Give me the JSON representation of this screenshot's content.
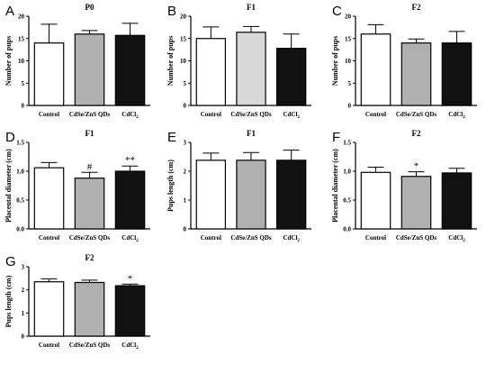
{
  "chart_data": [
    {
      "panel": "A",
      "type": "bar",
      "title": "P0",
      "ylabel": "Number of pups",
      "categories": [
        "Control",
        "CdSe/ZnS QDs",
        "CdCl2"
      ],
      "values": [
        14,
        16,
        15.7
      ],
      "errors": [
        4.2,
        0.8,
        2.7
      ],
      "colors": [
        "#ffffff",
        "#b0b0b0",
        "#111111"
      ],
      "ylim": [
        0,
        20
      ],
      "yticks": [
        "0",
        "5",
        "10",
        "15",
        "20"
      ],
      "annotations": [
        "",
        "",
        ""
      ]
    },
    {
      "panel": "B",
      "type": "bar",
      "title": "F1",
      "ylabel": "Number of pups",
      "categories": [
        "Control",
        "CdSe/ZnS QDs",
        "CdCl2"
      ],
      "values": [
        15,
        16.4,
        12.8
      ],
      "errors": [
        2.6,
        1.3,
        3.2
      ],
      "colors": [
        "#ffffff",
        "#d8d8d8",
        "#111111"
      ],
      "ylim": [
        0,
        20
      ],
      "yticks": [
        "0",
        "5",
        "10",
        "15",
        "20"
      ],
      "annotations": [
        "",
        "",
        ""
      ]
    },
    {
      "panel": "C",
      "type": "bar",
      "title": "F2",
      "ylabel": "Number of pups",
      "categories": [
        "Control",
        "CdSe/ZnS QDs",
        "CdCl2"
      ],
      "values": [
        16,
        14,
        14
      ],
      "errors": [
        2.1,
        0.9,
        2.6
      ],
      "colors": [
        "#ffffff",
        "#b0b0b0",
        "#111111"
      ],
      "ylim": [
        0,
        20
      ],
      "yticks": [
        "0",
        "5",
        "10",
        "15",
        "20"
      ],
      "annotations": [
        "",
        "",
        ""
      ]
    },
    {
      "panel": "D",
      "type": "bar",
      "title": "F1",
      "ylabel": "Placental diameter (cm)",
      "categories": [
        "Control",
        "CdSe/ZnS QDs",
        "CdCl2"
      ],
      "values": [
        1.06,
        0.88,
        1.0
      ],
      "errors": [
        0.09,
        0.1,
        0.09
      ],
      "colors": [
        "#ffffff",
        "#b0b0b0",
        "#111111"
      ],
      "ylim": [
        0,
        1.5
      ],
      "yticks": [
        "0.0",
        "0.5",
        "1.0",
        "1.5"
      ],
      "annotations": [
        "",
        "#",
        "**"
      ]
    },
    {
      "panel": "E",
      "type": "bar",
      "title": "F1",
      "ylabel": "Pups length (cm)",
      "categories": [
        "Control",
        "CdSe/ZnS QDs",
        "CdCl2"
      ],
      "values": [
        2.38,
        2.38,
        2.38
      ],
      "errors": [
        0.25,
        0.27,
        0.35
      ],
      "colors": [
        "#ffffff",
        "#b0b0b0",
        "#111111"
      ],
      "ylim": [
        0,
        3
      ],
      "yticks": [
        "0",
        "1",
        "2",
        "3"
      ],
      "annotations": [
        "",
        "",
        ""
      ]
    },
    {
      "panel": "F",
      "type": "bar",
      "title": "F2",
      "ylabel": "Placental diameter (cm)",
      "categories": [
        "Control",
        "CdSe/ZnS QDs",
        "CdCl2"
      ],
      "values": [
        0.98,
        0.91,
        0.97
      ],
      "errors": [
        0.09,
        0.08,
        0.08
      ],
      "colors": [
        "#ffffff",
        "#b0b0b0",
        "#111111"
      ],
      "ylim": [
        0,
        1.5
      ],
      "yticks": [
        "0.0",
        "0.5",
        "1.0",
        "1.5"
      ],
      "annotations": [
        "",
        "*",
        ""
      ]
    },
    {
      "panel": "G",
      "type": "bar",
      "title": "F2",
      "ylabel": "Pups length (cm)",
      "categories": [
        "Control",
        "CdSe/ZnS QDs",
        "CdCl2"
      ],
      "values": [
        2.35,
        2.32,
        2.18
      ],
      "errors": [
        0.13,
        0.1,
        0.07
      ],
      "colors": [
        "#ffffff",
        "#b0b0b0",
        "#111111"
      ],
      "ylim": [
        0,
        3
      ],
      "yticks": [
        "0",
        "1",
        "2",
        "3"
      ],
      "annotations": [
        "",
        "",
        "*"
      ]
    }
  ]
}
